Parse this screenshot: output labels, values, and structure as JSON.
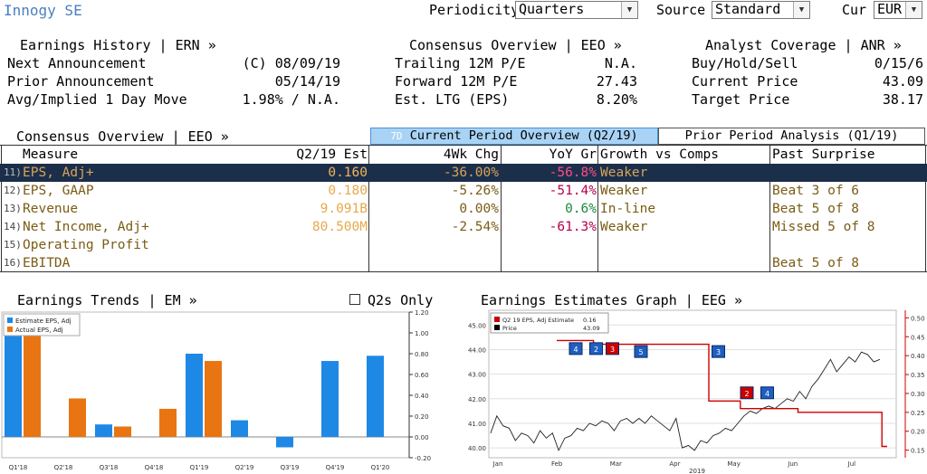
{
  "header": {
    "security": "Innogy SE",
    "periodicity_label": "Periodicity",
    "periodicity_value": "Quarters",
    "source_label": "Source",
    "source_value": "Standard",
    "cur_label": "Cur",
    "cur_value": "EUR"
  },
  "earnings_history": {
    "title": "Earnings History | ERN »",
    "rows": [
      {
        "label": "Next Announcement",
        "value": "(C) 08/09/19"
      },
      {
        "label": "Prior Announcement",
        "value": "05/14/19"
      },
      {
        "label": "Avg/Implied 1 Day Move",
        "value": "1.98% / N.A."
      }
    ]
  },
  "consensus_overview_top": {
    "title": "Consensus Overview | EEO »",
    "rows": [
      {
        "label": "Trailing 12M P/E",
        "value": "N.A."
      },
      {
        "label": "Forward 12M P/E",
        "value": "27.43"
      },
      {
        "label": "Est. LTG (EPS)",
        "value": "8.20%"
      }
    ]
  },
  "analyst_coverage": {
    "title": "Analyst Coverage | ANR »",
    "rows": [
      {
        "label": "Buy/Hold/Sell",
        "value": "0/15/6"
      },
      {
        "label": "Current Price",
        "value": "43.09"
      },
      {
        "label": "Target Price",
        "value": "38.17"
      }
    ]
  },
  "consensus_table": {
    "title": "Consensus Overview | EEO »",
    "tab_active_prefix": "7D",
    "tab_active": "Current Period Overview (Q2/19)",
    "tab_inactive": "Prior Period Analysis (Q1/19)",
    "columns": [
      "Measure",
      "Q2/19 Est",
      "4Wk Chg",
      "YoY Gr",
      "Growth vs Comps",
      "Past Surprise"
    ],
    "rows": [
      {
        "num": "11)",
        "measure": "EPS, Adj+",
        "est": "0.160",
        "chg": "-36.00%",
        "yoy": "-56.8%",
        "growth": "Weaker",
        "surprise": ""
      },
      {
        "num": "12)",
        "measure": "EPS, GAAP",
        "est": "0.180",
        "chg": "-5.26%",
        "yoy": "-51.4%",
        "growth": "Weaker",
        "surprise": "Beat 3 of 6"
      },
      {
        "num": "13)",
        "measure": "Revenue",
        "est": "9.091B",
        "chg": "0.00%",
        "yoy": "0.6%",
        "growth": "In-line",
        "surprise": "Beat 5 of 8"
      },
      {
        "num": "14)",
        "measure": "Net Income, Adj+",
        "est": "80.500M",
        "chg": "-2.54%",
        "yoy": "-61.3%",
        "growth": "Weaker",
        "surprise": "Missed 5 of 8"
      },
      {
        "num": "15)",
        "measure": "Operating Profit",
        "est": "",
        "chg": "",
        "yoy": "",
        "growth": "",
        "surprise": ""
      },
      {
        "num": "16)",
        "measure": "EBITDA",
        "est": "",
        "chg": "",
        "yoy": "",
        "growth": "",
        "surprise": "Beat 5 of 8"
      }
    ]
  },
  "earnings_trends": {
    "title": "Earnings Trends | EM »",
    "q2s_only_label": "Q2s Only"
  },
  "earnings_estimates_graph": {
    "title": "Earnings Estimates Graph | EEG »"
  },
  "chart_data": [
    {
      "type": "bar",
      "categories": [
        "Q1'18",
        "Q2'18",
        "Q3'18",
        "Q4'18",
        "Q1'19",
        "Q2'19",
        "Q3'19",
        "Q4'19",
        "Q1'20"
      ],
      "series": [
        {
          "name": "Estimate EPS, Adj",
          "color": "#1e88e5",
          "values": [
            1.1,
            null,
            0.12,
            null,
            0.8,
            0.16,
            -0.1,
            0.73,
            0.78
          ]
        },
        {
          "name": "Actual EPS, Adj",
          "color": "#e87511",
          "values": [
            1.15,
            0.37,
            0.1,
            0.27,
            0.73,
            null,
            null,
            null,
            null
          ]
        }
      ],
      "yticks": [
        1.2,
        1.0,
        0.8,
        0.6,
        0.4,
        0.2,
        0.0,
        -0.2
      ],
      "ylim": [
        -0.2,
        1.2
      ],
      "legend": "top-left"
    },
    {
      "type": "line",
      "x_ticks": [
        "Jan",
        "Feb",
        "Mar",
        "Apr",
        "May",
        "Jun",
        "Jul"
      ],
      "x_year_label": "2019",
      "left_axis": {
        "ticks": [
          "45.00",
          "44.00",
          "43.00",
          "42.00",
          "41.00",
          "40.00"
        ],
        "ylim": [
          39.6,
          45.6
        ]
      },
      "right_axis": {
        "ticks": [
          "0.50",
          "0.45",
          "0.40",
          "0.35",
          "0.30",
          "0.25",
          "0.20",
          "0.15"
        ],
        "ylim": [
          0.13,
          0.52
        ]
      },
      "legend": [
        {
          "name": "Q2 19 EPS, Adj Estimate",
          "value": "0.16",
          "color": "#cc0000"
        },
        {
          "name": "Price",
          "value": "43.09",
          "color": "#000000"
        }
      ],
      "price_series": [
        40.6,
        41.3,
        40.9,
        40.8,
        40.3,
        40.6,
        40.5,
        40.2,
        40.7,
        40.4,
        40.6,
        39.9,
        40.4,
        40.5,
        40.8,
        40.7,
        41.0,
        40.9,
        41.1,
        41.0,
        40.7,
        41.1,
        41.2,
        41.0,
        41.2,
        41.0,
        41.3,
        41.1,
        40.9,
        40.7,
        41.2,
        40.0,
        40.1,
        39.9,
        40.3,
        40.2,
        40.5,
        40.6,
        40.8,
        40.7,
        41.0,
        41.3,
        41.5,
        41.4,
        41.6,
        41.7,
        41.6,
        41.8,
        42.0,
        41.9,
        42.3,
        42.0,
        42.5,
        42.8,
        43.2,
        43.6,
        43.1,
        43.4,
        43.7,
        43.5,
        43.9,
        43.8,
        43.5,
        43.6
      ],
      "estimate_series": [
        0.44,
        0.44,
        0.44,
        0.44,
        0.44,
        0.44,
        0.44,
        0.43,
        0.43,
        0.43,
        0.43,
        0.43,
        0.43,
        0.43,
        0.43,
        0.43,
        0.43,
        0.43,
        0.43,
        0.43,
        0.43,
        0.43,
        0.43,
        0.43,
        0.43,
        0.43,
        0.43,
        0.43,
        0.43,
        0.28,
        0.28,
        0.28,
        0.28,
        0.28,
        0.28,
        0.26,
        0.26,
        0.26,
        0.26,
        0.26,
        0.26,
        0.26,
        0.26,
        0.26,
        0.26,
        0.26,
        0.25,
        0.25,
        0.25,
        0.25,
        0.25,
        0.25,
        0.25,
        0.25,
        0.25,
        0.25,
        0.25,
        0.25,
        0.25,
        0.25,
        0.25,
        0.25,
        0.16,
        0.16
      ],
      "flags": [
        {
          "label": "4",
          "color": "#1e5fbf"
        },
        {
          "label": "2",
          "color": "#1e5fbf"
        },
        {
          "label": "3",
          "color": "#cc0000"
        },
        {
          "label": "5",
          "color": "#1e5fbf"
        },
        {
          "label": "3",
          "color": "#1e5fbf"
        },
        {
          "label": "2",
          "color": "#cc0000"
        },
        {
          "label": "4",
          "color": "#1e5fbf"
        }
      ]
    }
  ]
}
